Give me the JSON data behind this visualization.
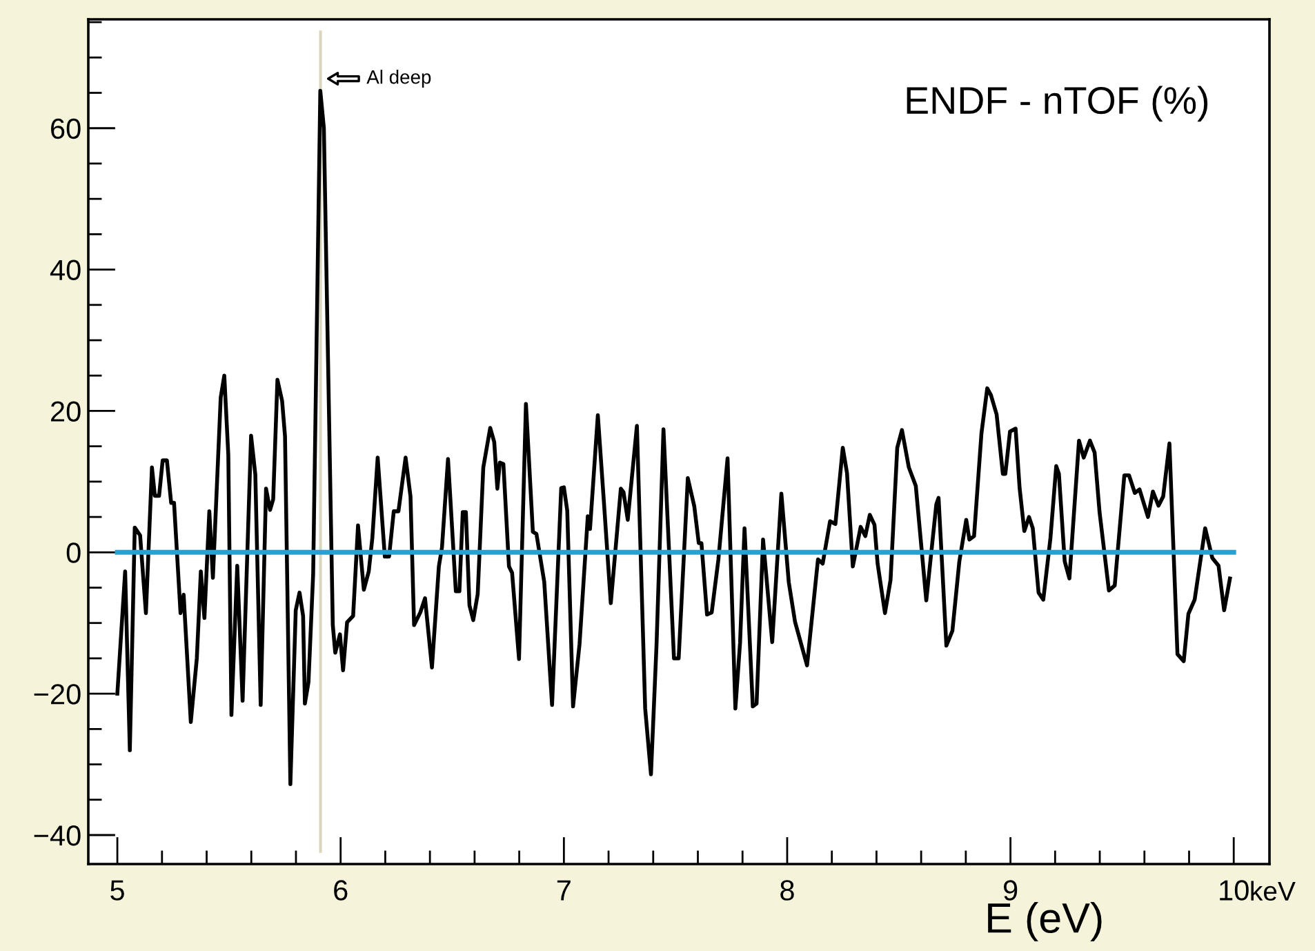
{
  "chart_data": {
    "type": "line",
    "xlabel": "E (eV)",
    "xlim": [
      4.87,
      10.16
    ],
    "ylim": [
      -44.1,
      75.4
    ],
    "xticks": [
      5,
      6,
      7,
      8,
      9,
      10
    ],
    "yticks": [
      -40,
      -20,
      0,
      20,
      40,
      60
    ],
    "annotations": [
      "ENDF - nTOF (%)",
      "keV",
      {
        "text": "Al deep",
        "x": 5.91,
        "y": 67
      }
    ],
    "ref_lines": [
      {
        "axis": "x",
        "value": 5.91,
        "color": "#d9d6bd"
      }
    ],
    "series": [
      {
        "color": "#000000",
        "x": [
          5.0,
          5.035,
          5.056,
          5.078,
          5.102,
          5.128,
          5.155,
          5.168,
          5.187,
          5.203,
          5.222,
          5.241,
          5.254,
          5.283,
          5.297,
          5.329,
          5.356,
          5.374,
          5.39,
          5.412,
          5.428,
          5.463,
          5.479,
          5.497,
          5.511,
          5.537,
          5.561,
          5.599,
          5.618,
          5.642,
          5.666,
          5.684,
          5.698,
          5.717,
          5.738,
          5.751,
          5.775,
          5.799,
          5.816,
          5.832,
          5.84,
          5.856,
          5.877,
          5.909,
          5.925,
          5.965,
          5.976,
          5.997,
          6.011,
          6.029,
          6.056,
          6.078,
          6.104,
          6.126,
          6.142,
          6.166,
          6.198,
          6.217,
          6.238,
          6.259,
          6.291,
          6.313,
          6.329,
          6.357,
          6.378,
          6.409,
          6.44,
          6.454,
          6.481,
          6.516,
          6.532,
          6.547,
          6.561,
          6.577,
          6.594,
          6.614,
          6.639,
          6.67,
          6.688,
          6.702,
          6.713,
          6.729,
          6.754,
          6.768,
          6.799,
          6.83,
          6.861,
          6.877,
          6.912,
          6.947,
          6.988,
          7.0,
          7.015,
          7.041,
          7.07,
          7.107,
          7.117,
          7.152,
          7.179,
          7.21,
          7.255,
          7.267,
          7.286,
          7.327,
          7.364,
          7.39,
          7.415,
          7.446,
          7.493,
          7.514,
          7.555,
          7.584,
          7.604,
          7.616,
          7.641,
          7.662,
          7.692,
          7.733,
          7.768,
          7.789,
          7.809,
          7.846,
          7.863,
          7.892,
          7.933,
          7.974,
          8.007,
          8.035,
          8.089,
          8.138,
          8.159,
          8.192,
          8.216,
          8.249,
          8.268,
          8.294,
          8.329,
          8.35,
          8.37,
          8.391,
          8.405,
          8.438,
          8.463,
          8.493,
          8.514,
          8.545,
          8.576,
          8.623,
          8.668,
          8.678,
          8.713,
          8.74,
          8.771,
          8.802,
          8.816,
          8.837,
          8.87,
          8.896,
          8.913,
          8.938,
          8.966,
          8.977,
          8.998,
          9.023,
          9.041,
          9.062,
          9.083,
          9.1,
          9.126,
          9.147,
          9.179,
          9.205,
          9.217,
          9.243,
          9.264,
          9.307,
          9.328,
          9.356,
          9.377,
          9.399,
          9.441,
          9.467,
          9.51,
          9.531,
          9.557,
          9.578,
          9.616,
          9.638,
          9.663,
          9.684,
          9.712,
          9.748,
          9.776,
          9.797,
          9.825,
          9.872,
          9.904,
          9.932,
          9.957,
          9.983
        ],
        "values": [
          -20,
          -2.7,
          -28,
          3.5,
          2.4,
          -8.6,
          12,
          8,
          8,
          13,
          13,
          7,
          7,
          -8.6,
          -6,
          -24,
          -15,
          -2.7,
          -9.3,
          5.8,
          -3.6,
          21.9,
          25,
          13.8,
          -23,
          -1.9,
          -21,
          16.5,
          11,
          -21.6,
          9,
          6,
          7.5,
          24.4,
          21.4,
          16.4,
          -32.8,
          -8.2,
          -5.7,
          -9,
          -21.4,
          -18.4,
          -3.1,
          65.3,
          60,
          -10.3,
          -14.2,
          -11.6,
          -16.7,
          -9.9,
          -9,
          3.8,
          -5.3,
          -2.7,
          2,
          13.4,
          -0.6,
          -0.6,
          5.8,
          5.8,
          13.4,
          7.9,
          -10.3,
          -8.5,
          -6.5,
          -16.3,
          -2,
          0.7,
          13.2,
          -5.5,
          -5.5,
          5.7,
          5.7,
          -7.5,
          -9.6,
          -5.9,
          12,
          17.6,
          15.6,
          9,
          12.7,
          12.5,
          -2,
          -2.9,
          -15.1,
          21,
          2.9,
          2.6,
          -4.2,
          -21.6,
          9.1,
          9.2,
          5.9,
          -21.8,
          -13,
          5.1,
          3.3,
          19.4,
          7.2,
          -7.2,
          9,
          8.5,
          4.6,
          17.9,
          -22.1,
          -31.4,
          -13,
          17.4,
          -15,
          -15,
          10.5,
          6.5,
          1.3,
          1.3,
          -8.8,
          -8.5,
          -1,
          13.3,
          -22.1,
          -12.8,
          3.4,
          -21.8,
          -21.4,
          1.8,
          -12.7,
          8.3,
          -4.2,
          -9.8,
          -16,
          -1,
          -1.6,
          4.4,
          4,
          14.8,
          11.2,
          -2,
          3.6,
          2.3,
          5.3,
          3.9,
          -1.6,
          -8.6,
          -3.9,
          14.8,
          17.3,
          12,
          9.4,
          -6.8,
          6.8,
          7.7,
          -13.2,
          -11.1,
          -1.3,
          4.6,
          1.8,
          2.3,
          16.8,
          23.2,
          22.2,
          19.5,
          11.1,
          11.1,
          17.1,
          17.5,
          9.1,
          3,
          5,
          3.4,
          -5.7,
          -6.7,
          2,
          12.2,
          11.1,
          -1.3,
          -3.7,
          15.8,
          13.4,
          15.8,
          14.1,
          5.7,
          -5.4,
          -4.7,
          10.9,
          10.9,
          8.4,
          8.9,
          5,
          8.6,
          6.6,
          7.9,
          15.4,
          -14.4,
          -15.4,
          -8.7,
          -6.7,
          3.4,
          -0.8,
          -1.9,
          -8.2,
          -3.7
        ]
      },
      {
        "color": "#2a9fd0",
        "x": [
          5,
          10
        ],
        "values": [
          0,
          0
        ]
      }
    ]
  }
}
